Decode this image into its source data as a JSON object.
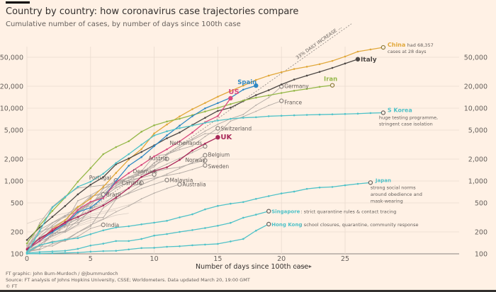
{
  "header": {
    "title": "Country by country: how coronavirus case trajectories compare",
    "subtitle": "Cumulative number of cases, by number of days since 100th case"
  },
  "footer": {
    "credit": "FT graphic: John Burn-Murdoch / @jburnmurdoch",
    "source": "Source: FT analysis of Johns Hopkins University, CSSE; Worldometers. Data updated March 20, 19:00 GMT",
    "copyright": "© FT"
  },
  "chart_data": {
    "type": "line",
    "title": "Country by country: how coronavirus case trajectories compare",
    "subtitle": "Cumulative number of cases, by number of days since 100th case",
    "xlabel": "Number of days since 100th case",
    "ylabel": "",
    "yscale": "log",
    "xlim": [
      0,
      32
    ],
    "ylim": [
      100,
      70000
    ],
    "x_ticks": [
      0,
      5,
      10,
      15,
      20,
      25
    ],
    "y_ticks": [
      100,
      200,
      500,
      1000,
      2000,
      5000,
      10000,
      20000,
      50000
    ],
    "y_tick_labels": [
      "100",
      "200",
      "500",
      "1,000",
      "2,000",
      "5,000",
      "10,000",
      "20,000",
      "50,000"
    ],
    "grid": true,
    "reference_line": {
      "label": "33% DAILY INCREASE ...",
      "daily_growth": 0.33,
      "start_value": 100
    },
    "series": [
      {
        "name": "China",
        "color": "#e1a83b",
        "highlight": true,
        "label": "China",
        "note": "had 68,357 cases at 28 days",
        "values": [
          114,
          150,
          220,
          290,
          440,
          570,
          830,
          1290,
          1970,
          2740,
          4500,
          5970,
          7710,
          9690,
          11790,
          14380,
          17200,
          20400,
          24400,
          28000,
          31200,
          34500,
          37100,
          40200,
          44600,
          51200,
          59800,
          64000,
          68357
        ]
      },
      {
        "name": "Italy",
        "color": "#4d4845",
        "highlight": true,
        "label": "Italy",
        "note": "",
        "values": [
          155,
          229,
          322,
          453,
          655,
          888,
          1128,
          1694,
          2036,
          2502,
          3089,
          3858,
          4636,
          5883,
          7375,
          9172,
          10149,
          12462,
          15113,
          17660,
          21157,
          24747,
          27980,
          31506,
          35713,
          41035,
          47021
        ]
      },
      {
        "name": "Iran",
        "color": "#96b84a",
        "highlight": true,
        "label": "Iran",
        "note": "",
        "values": [
          139,
          245,
          388,
          593,
          978,
          1501,
          2336,
          2922,
          3513,
          4747,
          5823,
          6566,
          7161,
          8042,
          9000,
          10075,
          11364,
          12729,
          13938,
          14991,
          16169,
          17361,
          18407,
          19644,
          20610
        ]
      },
      {
        "name": "Spain",
        "color": "#2e88c4",
        "highlight": true,
        "label": "Spain",
        "note": "",
        "values": [
          114,
          151,
          198,
          257,
          374,
          430,
          589,
          999,
          1622,
          2128,
          3004,
          4231,
          5753,
          7753,
          9942,
          11748,
          13910,
          17963,
          20410
        ]
      },
      {
        "name": "US",
        "color": "#d8497e",
        "highlight": true,
        "label": "US",
        "note": "",
        "values": [
          118,
          149,
          217,
          262,
          402,
          518,
          583,
          959,
          1281,
          1663,
          2179,
          2727,
          3499,
          4632,
          6421,
          7786,
          13680
        ]
      },
      {
        "name": "UK",
        "color": "#a82859",
        "highlight": true,
        "label": "UK",
        "note": "",
        "values": [
          115,
          163,
          206,
          273,
          321,
          383,
          460,
          590,
          798,
          1140,
          1372,
          1543,
          1950,
          2626,
          3269,
          3983
        ]
      },
      {
        "name": "S Korea",
        "color": "#4fc2c8",
        "highlight": true,
        "label": "S Korea",
        "note": "huge testing programme, stringent case isolation",
        "values": [
          104,
          204,
          433,
          602,
          833,
          977,
          1261,
          1766,
          2337,
          3150,
          4212,
          4812,
          5328,
          5766,
          6284,
          6767,
          7134,
          7382,
          7513,
          7755,
          7869,
          7979,
          8086,
          8162,
          8236,
          8320,
          8413,
          8565,
          8652
        ]
      },
      {
        "name": "Japan",
        "color": "#4fc2c8",
        "highlight": true,
        "label": "Japan",
        "note": "strong social norms around obedience and mask-wearing",
        "values": [
          105,
          132,
          144,
          157,
          164,
          186,
          210,
          230,
          239,
          254,
          268,
          284,
          317,
          349,
          408,
          455,
          488,
          514,
          568,
          620,
          675,
          716,
          780,
          814,
          829,
          873,
          914,
          950
        ]
      },
      {
        "name": "Singapore",
        "color": "#4fc2c8",
        "highlight": true,
        "label": "Singapore",
        "note": "strict quarantine rules & contact tracing",
        "values": [
          102,
          106,
          108,
          110,
          117,
          130,
          138,
          150,
          150,
          160,
          178,
          187,
          200,
          212,
          226,
          243,
          266,
          313,
          345,
          385
        ]
      },
      {
        "name": "Hong Kong",
        "color": "#4fc2c8",
        "highlight": true,
        "label": "Hong Kong",
        "note": "school closures, quarantine, community response",
        "values": [
          100,
          101,
          102,
          103,
          104,
          107,
          109,
          110,
          115,
          120,
          121,
          125,
          127,
          131,
          134,
          137,
          148,
          160,
          208,
          256
        ]
      },
      {
        "name": "Germany",
        "color": "#b2aaa4",
        "highlight": false,
        "label": "Germany",
        "note": "",
        "values": [
          130,
          159,
          196,
          262,
          534,
          639,
          795,
          902,
          1139,
          1296,
          1567,
          2369,
          3062,
          3795,
          4838,
          6012,
          7156,
          8198,
          10999,
          13957,
          19848
        ]
      },
      {
        "name": "France",
        "color": "#b2aaa4",
        "highlight": false,
        "label": "France",
        "note": "",
        "values": [
          100,
          130,
          191,
          204,
          288,
          380,
          653,
          949,
          1126,
          1209,
          1784,
          2281,
          2876,
          3661,
          4469,
          4499,
          6633,
          7652,
          9043,
          10871,
          12612
        ]
      },
      {
        "name": "Switzerland",
        "color": "#b2aaa4",
        "highlight": false,
        "label": "Switzerland",
        "note": "",
        "values": [
          120,
          214,
          268,
          337,
          374,
          491,
          652,
          858,
          1125,
          1359,
          2200,
          2330,
          2700,
          3028,
          4075,
          5294
        ]
      },
      {
        "name": "Netherlands",
        "color": "#b2aaa4",
        "highlight": false,
        "label": "Netherlands",
        "note": "",
        "values": [
          128,
          188,
          265,
          321,
          382,
          503,
          614,
          804,
          959,
          1135,
          1413,
          1705,
          2051,
          2460,
          2994
        ]
      },
      {
        "name": "Austria",
        "color": "#b2aaa4",
        "highlight": false,
        "label": "Austria",
        "note": "",
        "values": [
          104,
          131,
          182,
          246,
          302,
          504,
          655,
          860,
          1018,
          1332,
          1646,
          2013
        ]
      },
      {
        "name": "Belgium",
        "color": "#b2aaa4",
        "highlight": false,
        "label": "Belgium",
        "note": "",
        "values": [
          109,
          169,
          200,
          239,
          267,
          314,
          314,
          559,
          689,
          886,
          1058,
          1243,
          1486,
          1795,
          2257
        ]
      },
      {
        "name": "Norway",
        "color": "#b2aaa4",
        "highlight": false,
        "label": "Norway",
        "note": "",
        "values": [
          113,
          147,
          176,
          205,
          400,
          598,
          702,
          996,
          1090,
          1221,
          1333,
          1463,
          1550,
          1746,
          1914
        ]
      },
      {
        "name": "Sweden",
        "color": "#b2aaa4",
        "highlight": false,
        "label": "Sweden",
        "note": "",
        "values": [
          137,
          161,
          203,
          248,
          355,
          500,
          599,
          814,
          961,
          1022,
          1103,
          1190,
          1279,
          1439,
          1639
        ]
      },
      {
        "name": "Denmark",
        "color": "#b2aaa4",
        "highlight": false,
        "label": "Denmark",
        "note": "",
        "values": [
          113,
          264,
          444,
          617,
          804,
          836,
          875,
          933,
          1024,
          1115,
          1225
        ]
      },
      {
        "name": "Malaysia",
        "color": "#b2aaa4",
        "highlight": false,
        "label": "Malaysia",
        "note": "",
        "values": [
          117,
          129,
          149,
          149,
          197,
          238,
          428,
          566,
          673,
          790,
          900,
          1030
        ]
      },
      {
        "name": "Australia",
        "color": "#b2aaa4",
        "highlight": false,
        "label": "Australia",
        "note": "",
        "values": [
          112,
          127,
          128,
          156,
          197,
          249,
          298,
          377,
          452,
          568,
          681,
          791,
          900
        ]
      },
      {
        "name": "Canada",
        "color": "#b2aaa4",
        "highlight": false,
        "label": "Canada",
        "note": "",
        "values": [
          108,
          117,
          193,
          198,
          252,
          415,
          478,
          657,
          800,
          943
        ]
      },
      {
        "name": "Portugal",
        "color": "#b2aaa4",
        "highlight": false,
        "label": "Portugal",
        "note": "",
        "values": [
          112,
          169,
          245,
          331,
          448,
          448,
          785,
          1020
        ]
      },
      {
        "name": "Brazil",
        "color": "#b2aaa4",
        "highlight": false,
        "label": "Brazil",
        "note": "",
        "values": [
          121,
          200,
          234,
          291,
          428,
          621,
          654
        ]
      },
      {
        "name": "India",
        "color": "#b2aaa4",
        "highlight": false,
        "label": "India",
        "note": "",
        "values": [
          107,
          114,
          137,
          151,
          173,
          223,
          250
        ]
      }
    ]
  }
}
